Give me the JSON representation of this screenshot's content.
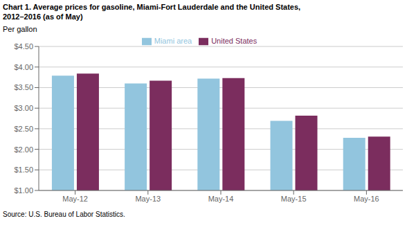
{
  "chart_data": {
    "type": "bar",
    "title": "Chart 1. Average prices for gasoline, Miami-Fort Lauderdale and the United States,\n2012–2016 (as of May)",
    "ylabel": "Per gallon",
    "source": "Source: U.S. Bureau of Labor Statistics.",
    "categories": [
      "May-12",
      "May-13",
      "May-14",
      "May-15",
      "May-16"
    ],
    "series": [
      {
        "name": "Miami area",
        "color": "#92C5DE",
        "values": [
          3.79,
          3.6,
          3.72,
          2.69,
          2.28
        ]
      },
      {
        "name": "United States",
        "color": "#7B2D5E",
        "values": [
          3.84,
          3.67,
          3.73,
          2.82,
          2.31
        ]
      }
    ],
    "ylim": [
      1.0,
      4.5
    ],
    "yticks": [
      {
        "value": 1.0,
        "label": "$1.00"
      },
      {
        "value": 1.5,
        "label": "$1.50"
      },
      {
        "value": 2.0,
        "label": "$2.00"
      },
      {
        "value": 2.5,
        "label": "$2.50"
      },
      {
        "value": 3.0,
        "label": "$3.00"
      },
      {
        "value": 3.5,
        "label": "$3.50"
      },
      {
        "value": 4.0,
        "label": "$4.00"
      },
      {
        "value": 4.5,
        "label": "$4.50"
      }
    ],
    "grid": true,
    "legend": "top"
  }
}
